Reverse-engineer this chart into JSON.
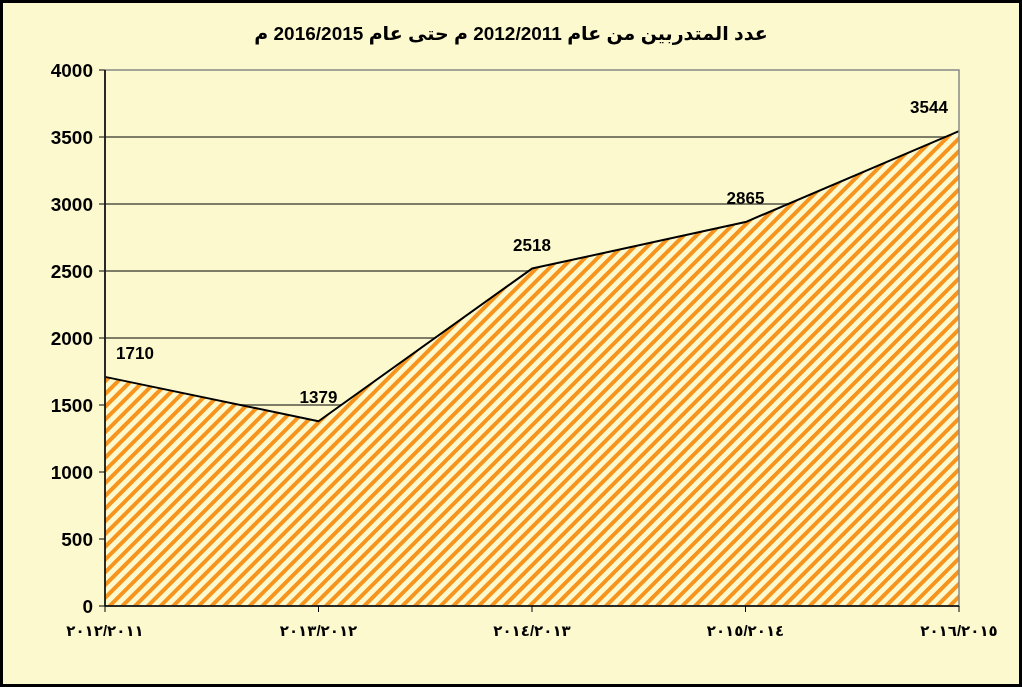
{
  "chart_data": {
    "type": "area",
    "title": "عدد المتدربين من عام 2012/2011 م حتى عام 2016/2015 م",
    "categories": [
      "٢٠١٢/٢٠١١",
      "٢٠١٣/٢٠١٢",
      "٢٠١٤/٢٠١٣",
      "٢٠١٥/٢٠١٤",
      "٢٠١٦/٢٠١٥"
    ],
    "values": [
      1710,
      1379,
      2518,
      2865,
      3544
    ],
    "color": "#f7941d",
    "ylim": [
      0,
      4000
    ],
    "yticks": [
      0,
      500,
      1000,
      1500,
      2000,
      2500,
      3000,
      3500,
      4000
    ],
    "grid": "y",
    "data_labels": true
  }
}
